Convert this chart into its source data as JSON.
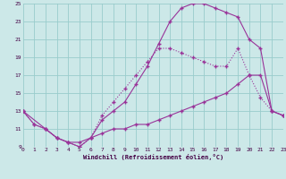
{
  "xlabel": "Windchill (Refroidissement éolien,°C)",
  "background_color": "#cce8e8",
  "grid_color": "#99cccc",
  "line_color": "#993399",
  "xmin": 0,
  "xmax": 23,
  "ymin": 9,
  "ymax": 25,
  "yticks": [
    9,
    11,
    13,
    15,
    17,
    19,
    21,
    23,
    25
  ],
  "xticks": [
    0,
    1,
    2,
    3,
    4,
    5,
    6,
    7,
    8,
    9,
    10,
    11,
    12,
    13,
    14,
    15,
    16,
    17,
    18,
    19,
    20,
    21,
    22,
    23
  ],
  "line_dotted_x": [
    0,
    1,
    2,
    3,
    4,
    5,
    6,
    7,
    8,
    9,
    10,
    11,
    12,
    13,
    14,
    15,
    16,
    17,
    18,
    19,
    20,
    21,
    22,
    23
  ],
  "line_dotted_y": [
    13,
    11.5,
    11,
    10,
    9.5,
    9,
    10,
    12.5,
    14,
    15.5,
    17,
    18.5,
    20,
    20,
    19.5,
    19,
    18.5,
    18,
    18,
    20,
    17,
    14.5,
    13,
    12.5
  ],
  "line_upper_x": [
    0,
    1,
    2,
    3,
    4,
    5,
    6,
    7,
    8,
    9,
    10,
    11,
    12,
    13,
    14,
    15,
    16,
    17,
    18,
    19,
    20,
    21,
    22,
    23
  ],
  "line_upper_y": [
    13,
    11.5,
    11,
    10,
    9.5,
    9,
    10,
    12,
    13,
    14,
    16,
    18,
    20.5,
    23,
    24.5,
    25,
    25,
    24.5,
    24,
    23.5,
    21,
    20,
    13,
    12.5
  ],
  "line_lower_x": [
    0,
    2,
    3,
    4,
    5,
    6,
    7,
    8,
    9,
    10,
    11,
    12,
    13,
    14,
    15,
    16,
    17,
    18,
    19,
    20,
    21,
    22,
    23
  ],
  "line_lower_y": [
    13,
    11,
    10,
    9.5,
    9.5,
    10,
    10.5,
    11,
    11,
    11.5,
    11.5,
    12,
    12.5,
    13,
    13.5,
    14,
    14.5,
    15,
    16,
    17,
    17,
    13,
    12.5
  ]
}
